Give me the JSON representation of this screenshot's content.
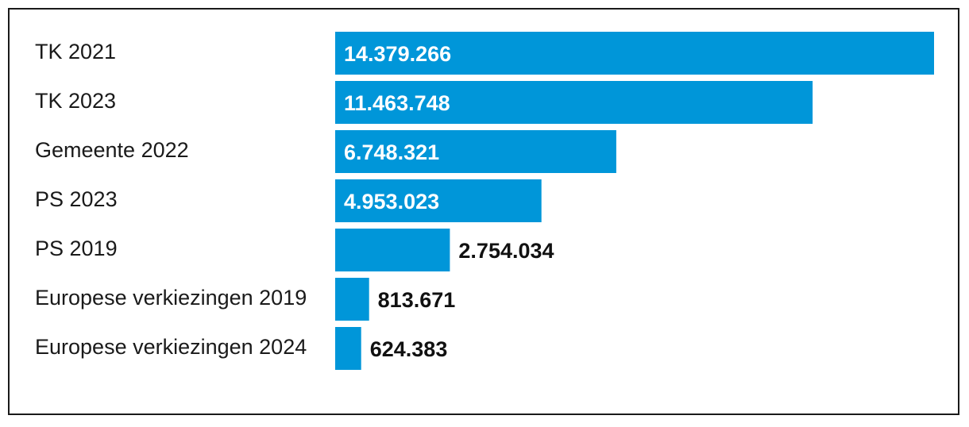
{
  "chart_data": {
    "type": "bar",
    "orientation": "horizontal",
    "categories": [
      "TK 2021",
      "TK 2023",
      "Gemeente 2022",
      "PS 2023",
      "PS 2019",
      "Europese verkiezingen 2019",
      "Europese verkiezingen 2024"
    ],
    "values": [
      14379266,
      11463748,
      6748321,
      4953023,
      2754034,
      813671,
      624383
    ],
    "value_labels": [
      "14.379.266",
      "11.463.748",
      "6.748.321",
      "4.953.023",
      "2.754.034",
      "813.671",
      "624.383"
    ],
    "xlim": [
      0,
      14379266
    ],
    "grid": false,
    "legend": "none",
    "colors": {
      "bar": "#0096d9",
      "label_inside": "#ffffff",
      "label_outside": "#111111",
      "text": "#1a1a1a",
      "border": "#1a1a1a"
    }
  }
}
